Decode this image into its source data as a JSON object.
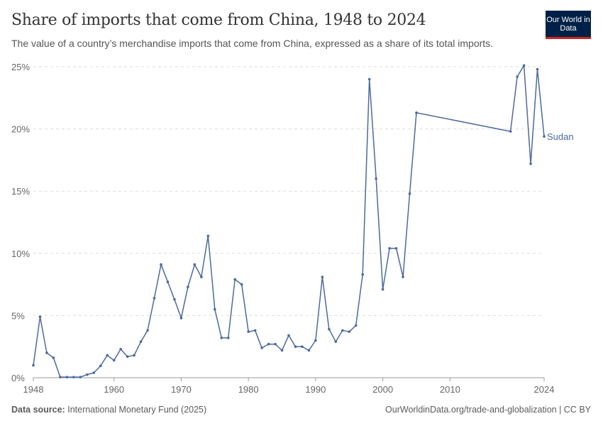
{
  "header": {
    "title": "Share of imports that come from China, 1948 to 2024",
    "subtitle": "The value of a country’s merchandise imports that come from China, expressed as a share of its total imports.",
    "logo_text": "Our World in Data"
  },
  "footer": {
    "source_label": "Data source:",
    "source": "International Monetary Fund (2025)",
    "url_license": "OurWorldinData.org/trade-and-globalization | CC BY"
  },
  "chart_data": {
    "type": "line",
    "title": "Share of imports that come from China, 1948 to 2024",
    "xlim": [
      1948,
      2024
    ],
    "ylim": [
      0,
      25
    ],
    "x_ticks": [
      "1948",
      "1960",
      "1970",
      "1980",
      "1990",
      "2000",
      "2010",
      "2024"
    ],
    "y_ticks": [
      "0%",
      "5%",
      "10%",
      "15%",
      "20%",
      "25%"
    ],
    "grid": "horizontal dashed",
    "color": "#4c6a9c",
    "series": [
      {
        "name": "Sudan",
        "points": [
          [
            1948,
            1.0
          ],
          [
            1949,
            4.9
          ],
          [
            1950,
            2.0
          ],
          [
            1951,
            1.6
          ],
          [
            1952,
            0.05
          ],
          [
            1953,
            0.05
          ],
          [
            1954,
            0.05
          ],
          [
            1955,
            0.05
          ],
          [
            1956,
            0.25
          ],
          [
            1957,
            0.4
          ],
          [
            1958,
            0.95
          ],
          [
            1959,
            1.8
          ],
          [
            1960,
            1.4
          ],
          [
            1961,
            2.3
          ],
          [
            1962,
            1.7
          ],
          [
            1963,
            1.8
          ],
          [
            1964,
            2.9
          ],
          [
            1965,
            3.8
          ],
          [
            1966,
            6.4
          ],
          [
            1967,
            9.1
          ],
          [
            1968,
            7.7
          ],
          [
            1969,
            6.3
          ],
          [
            1970,
            4.8
          ],
          [
            1971,
            7.3
          ],
          [
            1972,
            9.1
          ],
          [
            1973,
            8.1
          ],
          [
            1974,
            11.4
          ],
          [
            1975,
            5.5
          ],
          [
            1976,
            3.2
          ],
          [
            1977,
            3.2
          ],
          [
            1978,
            7.9
          ],
          [
            1979,
            7.5
          ],
          [
            1980,
            3.7
          ],
          [
            1981,
            3.8
          ],
          [
            1982,
            2.4
          ],
          [
            1983,
            2.7
          ],
          [
            1984,
            2.7
          ],
          [
            1985,
            2.2
          ],
          [
            1986,
            3.4
          ],
          [
            1987,
            2.5
          ],
          [
            1988,
            2.5
          ],
          [
            1989,
            2.2
          ],
          [
            1990,
            3.0
          ],
          [
            1991,
            8.1
          ],
          [
            1992,
            3.9
          ],
          [
            1993,
            2.9
          ],
          [
            1994,
            3.8
          ],
          [
            1995,
            3.7
          ],
          [
            1996,
            4.2
          ],
          [
            1997,
            8.3
          ],
          [
            1998,
            24.0
          ],
          [
            1999,
            16.0
          ],
          [
            2000,
            7.1
          ],
          [
            2001,
            10.4
          ],
          [
            2002,
            10.4
          ],
          [
            2003,
            8.1
          ],
          [
            2004,
            14.8
          ],
          [
            2005,
            21.3
          ],
          [
            2019,
            19.8
          ],
          [
            2020,
            24.2
          ],
          [
            2021,
            25.1
          ],
          [
            2022,
            17.2
          ],
          [
            2023,
            24.8
          ],
          [
            2024,
            19.4
          ]
        ]
      }
    ]
  }
}
